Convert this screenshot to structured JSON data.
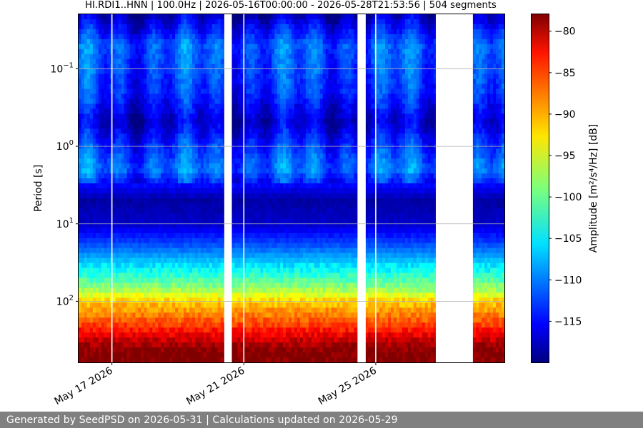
{
  "chart_data": {
    "type": "heatmap",
    "title": "HI.RDI1..HNN | 100.0Hz | 2026-05-16T00:00:00 - 2026-05-28T21:53:56 | 504 segments",
    "ylabel": "Period [s]",
    "y_scale": "log",
    "y_ticks": [
      {
        "value": 0.1,
        "mantissa": "10",
        "exponent": "−1"
      },
      {
        "value": 1,
        "mantissa": "10",
        "exponent": "0"
      },
      {
        "value": 10,
        "mantissa": "10",
        "exponent": "1"
      },
      {
        "value": 100,
        "mantissa": "10",
        "exponent": "2"
      }
    ],
    "y_range_s": [
      0.02,
      620
    ],
    "x_range": [
      "2026-05-16T00:00:00",
      "2026-05-28T21:53:56"
    ],
    "x_ticks": [
      {
        "date": "2026-05-17",
        "label": "May 17 2026"
      },
      {
        "date": "2026-05-21",
        "label": "May 21 2026"
      },
      {
        "date": "2026-05-25",
        "label": "May 25 2026"
      }
    ],
    "data_gaps": [
      [
        "2026-05-20T10:00",
        "2026-05-20T15:30"
      ],
      [
        "2026-05-24T11:00",
        "2026-05-24T17:00"
      ],
      [
        "2026-05-26T20:00",
        "2026-05-27T23:00"
      ]
    ],
    "colorbar": {
      "label": "Amplitude [m²/s⁴/Hz] [dB]",
      "range_db": [
        -120,
        -78
      ],
      "ticks": [
        -80,
        -85,
        -90,
        -95,
        -100,
        -105,
        -110,
        -115
      ],
      "colormap": "jet"
    },
    "amplitude_profile": [
      {
        "period_s": 0.02,
        "db": -118
      },
      {
        "period_s": 0.05,
        "db": -111
      },
      {
        "period_s": 0.1,
        "db": -112
      },
      {
        "period_s": 0.2,
        "db": -113
      },
      {
        "period_s": 0.5,
        "db": -117
      },
      {
        "period_s": 1,
        "db": -113
      },
      {
        "period_s": 2,
        "db": -110
      },
      {
        "period_s": 3,
        "db": -114
      },
      {
        "period_s": 5,
        "db": -118.5
      },
      {
        "period_s": 10,
        "db": -117
      },
      {
        "period_s": 20,
        "db": -111
      },
      {
        "period_s": 40,
        "db": -104
      },
      {
        "period_s": 70,
        "db": -98
      },
      {
        "period_s": 100,
        "db": -92
      },
      {
        "period_s": 200,
        "db": -86
      },
      {
        "period_s": 350,
        "db": -80
      },
      {
        "period_s": 450,
        "db": -78
      },
      {
        "period_s": 620,
        "db": -78
      }
    ],
    "grid": true
  },
  "footer": {
    "text": "Generated by SeedPSD on 2026-05-31 | Calculations updated on 2026-05-29"
  }
}
